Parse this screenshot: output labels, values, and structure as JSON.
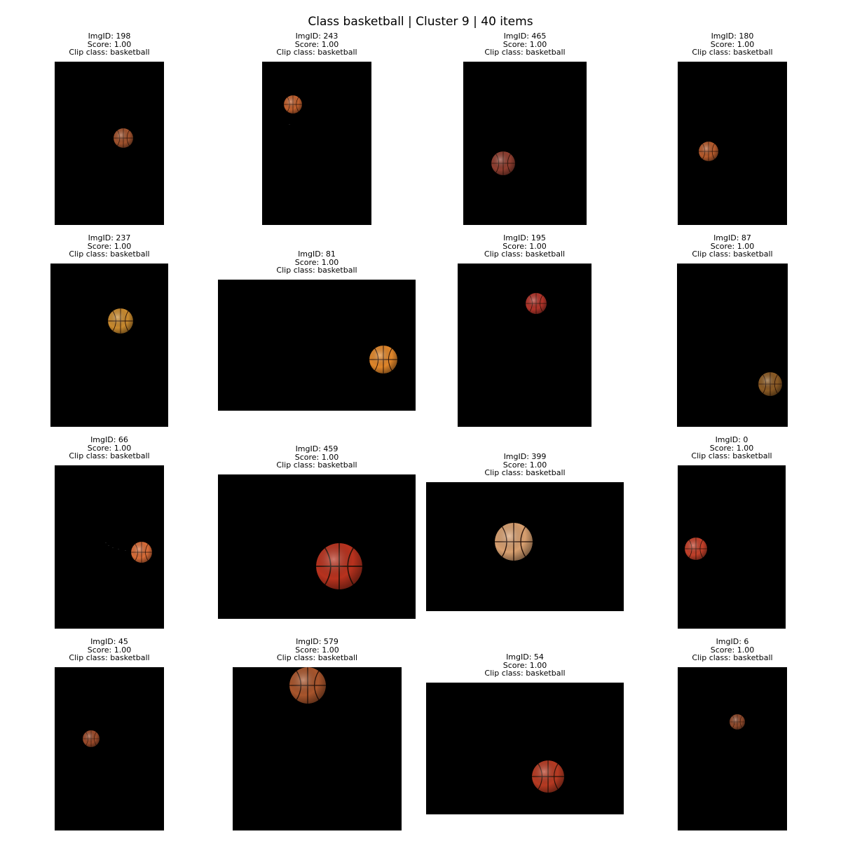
{
  "title": "Class basketball | Cluster 9 | 40 items",
  "tiles": [
    {
      "img_id": "ImgID: 198",
      "score": "Score: 1.00",
      "clip_class": "Clip class: basketball",
      "ball_color": "#a0522d",
      "icon": "basketball-icon"
    },
    {
      "img_id": "ImgID: 243",
      "score": "Score: 1.00",
      "clip_class": "Clip class: basketball",
      "ball_color": "#c0602e",
      "icon": "basketball-icon"
    },
    {
      "img_id": "ImgID: 465",
      "score": "Score: 1.00",
      "clip_class": "Clip class: basketball",
      "ball_color": "#8e3e30",
      "icon": "basketball-icon"
    },
    {
      "img_id": "ImgID: 180",
      "score": "Score: 1.00",
      "clip_class": "Clip class: basketball",
      "ball_color": "#b45a2c",
      "icon": "basketball-icon"
    },
    {
      "img_id": "ImgID: 237",
      "score": "Score: 1.00",
      "clip_class": "Clip class: basketball",
      "ball_color": "#c98a2e",
      "icon": "basketball-icon"
    },
    {
      "img_id": "ImgID: 81",
      "score": "Score: 1.00",
      "clip_class": "Clip class: basketball",
      "ball_color": "#e0862a",
      "icon": "basketball-icon"
    },
    {
      "img_id": "ImgID: 195",
      "score": "Score: 1.00",
      "clip_class": "Clip class: basketball",
      "ball_color": "#b0342a",
      "icon": "basketball-icon"
    },
    {
      "img_id": "ImgID: 87",
      "score": "Score: 1.00",
      "clip_class": "Clip class: basketball",
      "ball_color": "#8a5a24",
      "icon": "basketball-icon"
    },
    {
      "img_id": "ImgID: 66",
      "score": "Score: 1.00",
      "clip_class": "Clip class: basketball",
      "ball_color": "#d86c38",
      "icon": "basketball-icon"
    },
    {
      "img_id": "ImgID: 459",
      "score": "Score: 1.00",
      "clip_class": "Clip class: basketball",
      "ball_color": "#b8321e",
      "icon": "basketball-icon"
    },
    {
      "img_id": "ImgID: 399",
      "score": "Score: 1.00",
      "clip_class": "Clip class: basketball",
      "ball_color": "#d8a070",
      "icon": "basketball-icon"
    },
    {
      "img_id": "ImgID: 0",
      "score": "Score: 1.00",
      "clip_class": "Clip class: basketball",
      "ball_color": "#c2402a",
      "icon": "basketball-icon"
    },
    {
      "img_id": "ImgID: 45",
      "score": "Score: 1.00",
      "clip_class": "Clip class: basketball",
      "ball_color": "#9a4a2a",
      "icon": "basketball-icon"
    },
    {
      "img_id": "ImgID: 579",
      "score": "Score: 1.00",
      "clip_class": "Clip class: basketball",
      "ball_color": "#a8552c",
      "icon": "basketball-icon"
    },
    {
      "img_id": "ImgID: 54",
      "score": "Score: 1.00",
      "clip_class": "Clip class: basketball",
      "ball_color": "#b63a22",
      "icon": "basketball-icon"
    },
    {
      "img_id": "ImgID: 6",
      "score": "Score: 1.00",
      "clip_class": "Clip class: basketball",
      "ball_color": "#8f4a2c",
      "icon": "basketball-icon"
    }
  ]
}
